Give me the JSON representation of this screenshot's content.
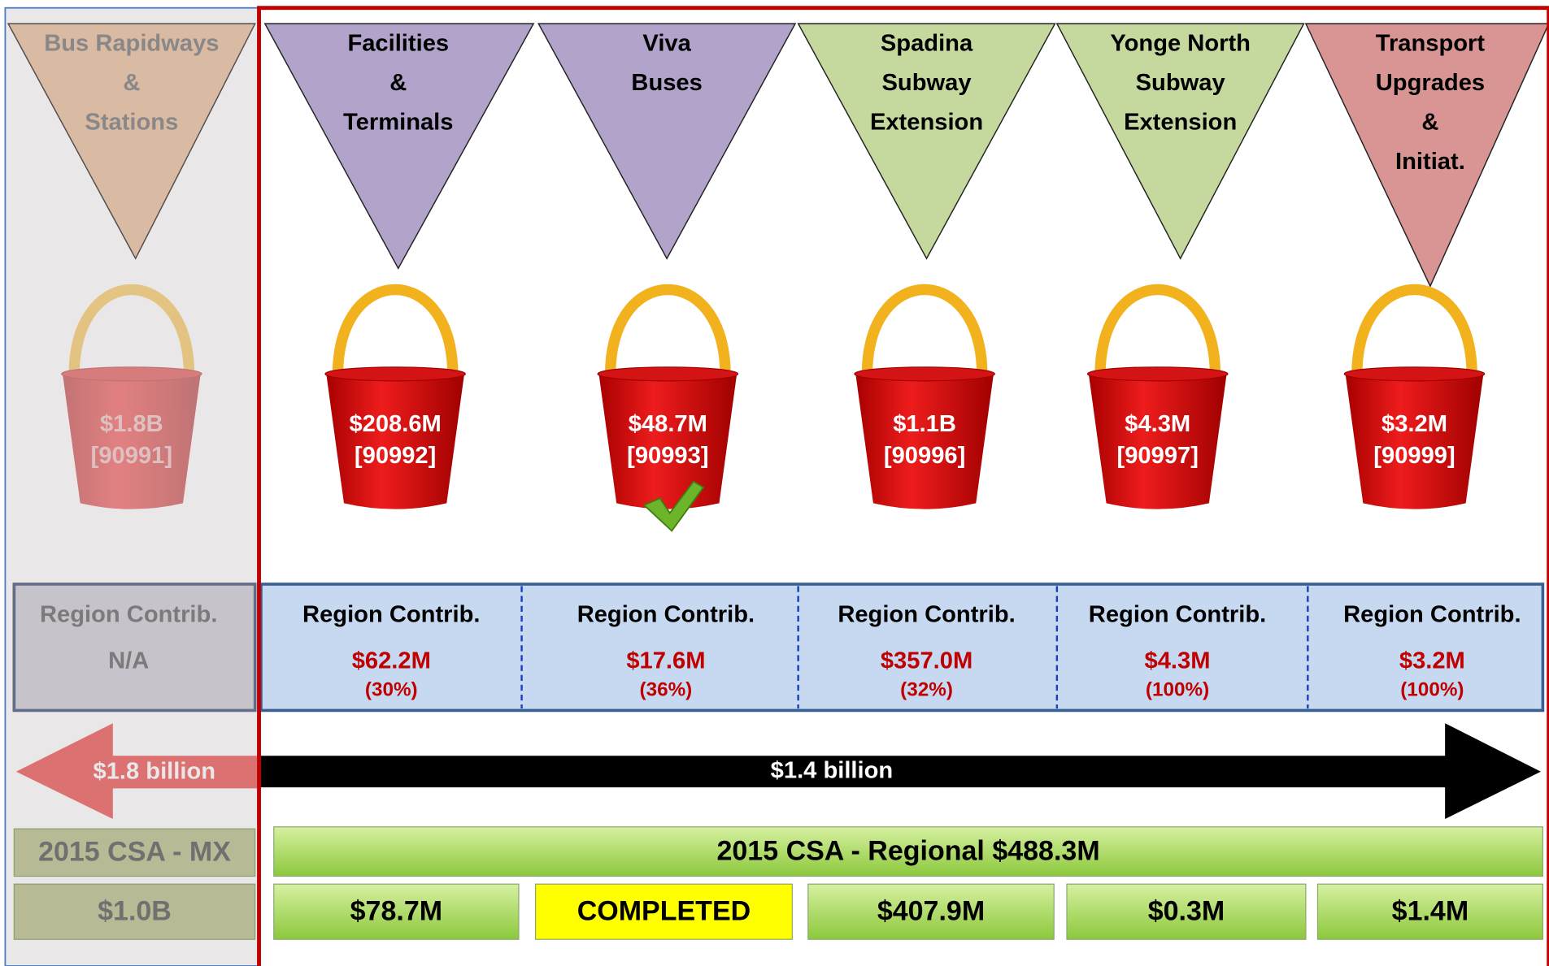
{
  "columns": [
    {
      "title": [
        "Bus Rapidways",
        "&",
        "Stations"
      ],
      "amount": "$1.8B",
      "code": "[90991]",
      "contrib_label": "Region Contrib.",
      "contrib": "N/A"
    },
    {
      "title": [
        "Facilities",
        "&",
        "Terminals"
      ],
      "amount": "$208.6M",
      "code": "[90992]",
      "contrib_label": "Region Contrib.",
      "contrib": "$62.2M",
      "pct": "(30%)"
    },
    {
      "title": [
        "Viva",
        "Buses"
      ],
      "amount": "$48.7M",
      "code": "[90993]",
      "contrib_label": "Region Contrib.",
      "contrib": "$17.6M",
      "pct": "(36%)"
    },
    {
      "title": [
        "Spadina",
        "Subway",
        "Extension"
      ],
      "amount": "$1.1B",
      "code": "[90996]",
      "contrib_label": "Region Contrib.",
      "contrib": "$357.0M",
      "pct": "(32%)"
    },
    {
      "title": [
        "Yonge North",
        "Subway",
        "Extension"
      ],
      "amount": "$4.3M",
      "code": "[90997]",
      "contrib_label": "Region Contrib.",
      "contrib": "$4.3M",
      "pct": "(100%)"
    },
    {
      "title": [
        "Transport",
        "Upgrades",
        "&",
        "Initiat."
      ],
      "amount": "$3.2M",
      "code": "[90999]",
      "contrib_label": "Region Contrib.",
      "contrib": "$3.2M",
      "pct": "(100%)"
    }
  ],
  "arrows": {
    "left": "$1.8 billion",
    "right": "$1.4 billion"
  },
  "csa": {
    "mx_label": "2015 CSA - MX",
    "mx_value": "$1.0B",
    "regional_label": "2015 CSA  -  Regional $488.3M",
    "values": [
      "$78.7M",
      "COMPLETED",
      "$407.9M",
      "$0.3M",
      "$1.4M"
    ]
  }
}
